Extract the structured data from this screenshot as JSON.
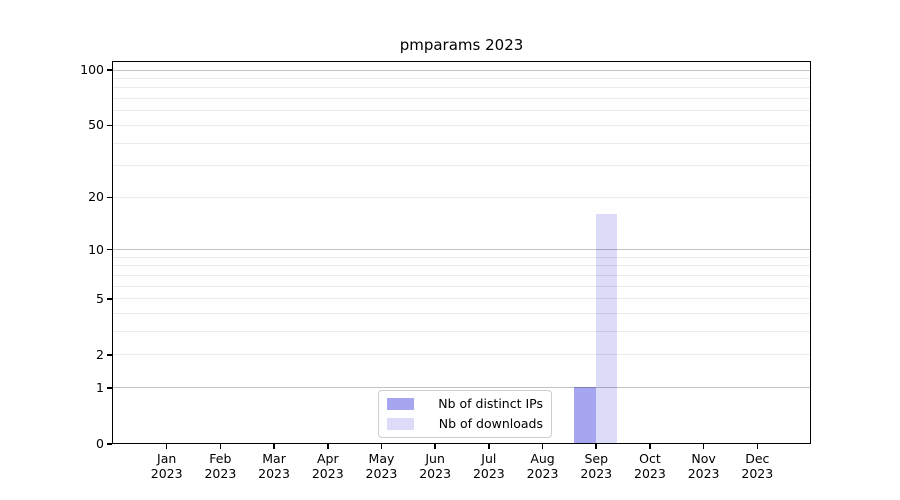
{
  "title": "pmparams 2023",
  "chart_data": {
    "type": "bar",
    "title": "pmparams 2023",
    "xlabel": "",
    "ylabel": "",
    "scale": "log1p",
    "ylim": [
      0,
      110
    ],
    "grid": true,
    "legend_position": "lower center",
    "months": [
      "Jan",
      "Feb",
      "Mar",
      "Apr",
      "May",
      "Jun",
      "Jul",
      "Aug",
      "Sep",
      "Oct",
      "Nov",
      "Dec"
    ],
    "year": "2023",
    "y_major_ticks": [
      0,
      1,
      2,
      5,
      10,
      20,
      50,
      100
    ],
    "y_decade_gridlines": [
      1,
      10,
      100
    ],
    "y_minor_gridlines": [
      2,
      3,
      4,
      5,
      6,
      7,
      8,
      9,
      20,
      30,
      40,
      50,
      60,
      70,
      80,
      90
    ],
    "series": [
      {
        "name": "Nb of distinct IPs",
        "color": "#a5a5f0",
        "values": [
          0,
          0,
          0,
          0,
          0,
          0,
          0,
          0,
          1,
          0,
          0,
          0
        ]
      },
      {
        "name": "Nb of downloads",
        "color": "#dcdcf8",
        "values": [
          0,
          0,
          0,
          0,
          0,
          0,
          0,
          0,
          16,
          0,
          0,
          0
        ]
      }
    ]
  },
  "colors": {
    "background": "#ffffff",
    "spine": "#000000",
    "distinct_ips_bar": "#a5a5f0",
    "downloads_bar": "#dcdcf8",
    "legend_border": "#cccccc"
  }
}
